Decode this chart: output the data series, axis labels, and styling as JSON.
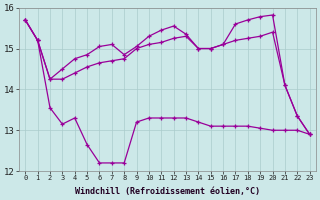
{
  "x": [
    0,
    1,
    2,
    3,
    4,
    5,
    6,
    7,
    8,
    9,
    10,
    11,
    12,
    13,
    14,
    15,
    16,
    17,
    18,
    19,
    20,
    21,
    22,
    23
  ],
  "line1": [
    15.7,
    15.2,
    14.25,
    14.25,
    14.4,
    14.55,
    14.65,
    14.7,
    14.75,
    15.0,
    15.1,
    15.15,
    15.25,
    15.3,
    15.0,
    15.0,
    15.1,
    15.2,
    15.25,
    15.3,
    15.4,
    14.1,
    13.35,
    12.9
  ],
  "line2": [
    15.7,
    15.2,
    14.25,
    14.5,
    14.75,
    14.85,
    15.05,
    15.1,
    14.85,
    15.05,
    15.3,
    15.45,
    15.55,
    15.35,
    15.0,
    15.0,
    15.1,
    15.6,
    15.7,
    15.78,
    15.82,
    14.1,
    13.35,
    12.9
  ],
  "line3": [
    15.7,
    15.2,
    13.55,
    13.15,
    13.3,
    12.65,
    12.2,
    12.2,
    12.2,
    13.2,
    13.3,
    13.3,
    13.3,
    13.3,
    13.2,
    13.1,
    13.1,
    13.1,
    13.1,
    13.05,
    13.0,
    13.0,
    13.0,
    12.9
  ],
  "color": "#990099",
  "bg_color": "#cce8e8",
  "grid_color": "#aacccc",
  "xlabel": "Windchill (Refroidissement éolien,°C)",
  "ylim": [
    12,
    16
  ],
  "yticks": [
    12,
    13,
    14,
    15,
    16
  ],
  "xticks": [
    0,
    1,
    2,
    3,
    4,
    5,
    6,
    7,
    8,
    9,
    10,
    11,
    12,
    13,
    14,
    15,
    16,
    17,
    18,
    19,
    20,
    21,
    22,
    23
  ]
}
